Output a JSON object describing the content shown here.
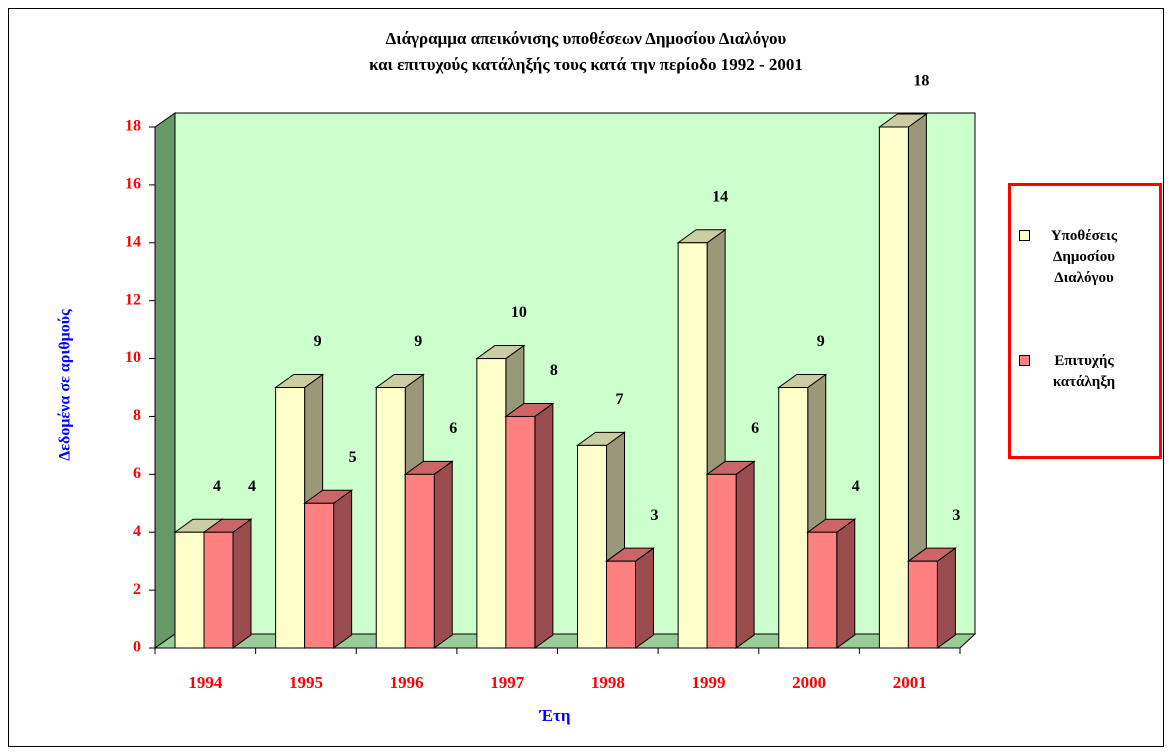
{
  "chart_data": {
    "type": "bar3d",
    "title": [
      "Διάγραμμα απεικόνισης υποθέσεων Δημοσίου Διαλόγου",
      "και επιτυχούς κατάληξής τους κατά την περίοδο 1992 - 2001"
    ],
    "x_label": "Έτη",
    "y_label": "Δεδομένα σε αριθμούς",
    "categories": [
      "1994",
      "1995",
      "1996",
      "1997",
      "1998",
      "1999",
      "2000",
      "2001"
    ],
    "series": [
      {
        "name": "Υποθέσεις Δημοσίου Διαλόγου",
        "color": "#ffffcc",
        "values": [
          4,
          9,
          9,
          10,
          7,
          14,
          9,
          18
        ]
      },
      {
        "name": "Επιτυχής κατάληξη",
        "color": "#ff8080",
        "values": [
          4,
          5,
          6,
          8,
          3,
          6,
          4,
          3
        ]
      }
    ],
    "ylim": [
      0,
      18
    ],
    "yticks": [
      0,
      2,
      4,
      6,
      8,
      10,
      12,
      14,
      16,
      18
    ],
    "grid": false
  }
}
